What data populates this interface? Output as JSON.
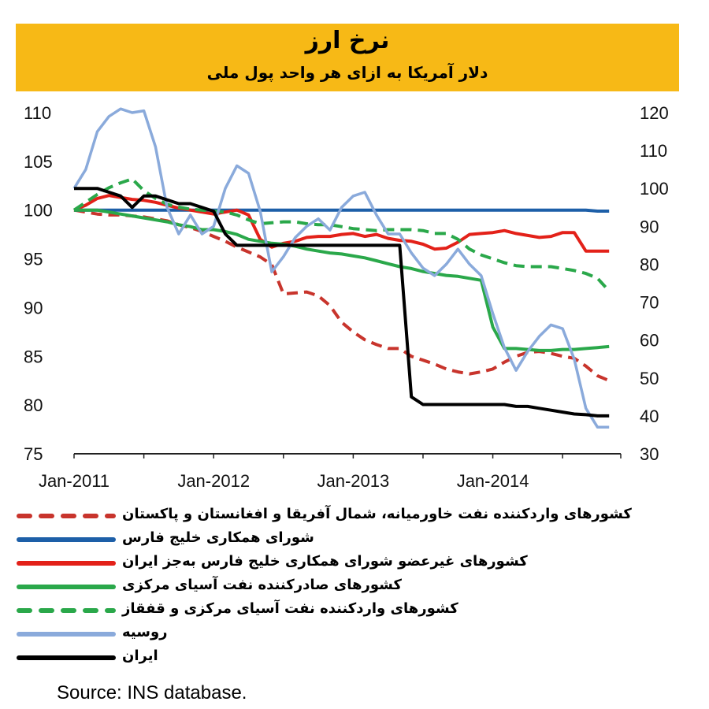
{
  "chart_data": {
    "type": "line",
    "title": "نرخ ارز",
    "subtitle": "دلار آمریکا به ازای هر واحد پول ملی",
    "source": "Source: INS database.",
    "x_ticks": [
      "Jan-2011",
      "Jan-2012",
      "Jan-2013",
      "Jan-2014"
    ],
    "x_range": [
      0,
      47
    ],
    "y_left": {
      "ticks": [
        "110",
        "105",
        "100",
        "95",
        "90",
        "85",
        "80",
        "75"
      ],
      "range": [
        75,
        110
      ]
    },
    "y_right": {
      "ticks": [
        "120",
        "110",
        "100",
        "90",
        "80",
        "70",
        "60",
        "50",
        "40",
        "30"
      ],
      "range": [
        30,
        120
      ]
    },
    "grid": false,
    "legend_position": "bottom",
    "series": [
      {
        "name": "کشورهای واردکننده نفت خاورمیانه، شمال آفریقا و افغانستان و پاکستان",
        "color": "#c8342c",
        "dash": true,
        "axis": "left",
        "values": [
          100,
          99.8,
          99.6,
          99.5,
          99.5,
          99.4,
          99.3,
          99.1,
          98.9,
          98.5,
          98.2,
          97.8,
          97.3,
          96.8,
          96.2,
          95.7,
          95.2,
          94.4,
          91.4,
          91.5,
          91.6,
          91.2,
          90.2,
          88.5,
          87.5,
          86.7,
          86.2,
          85.8,
          85.8,
          85.0,
          84.6,
          84.2,
          83.7,
          83.4,
          83.2,
          83.4,
          83.7,
          84.4,
          85.0,
          85.4,
          85.5,
          85.3,
          85.0,
          84.8,
          84.0,
          83.0,
          82.5
        ]
      },
      {
        "name": "شورای همکاری خلیج فارس",
        "color": "#1d5fa8",
        "dash": false,
        "axis": "left",
        "values": [
          100,
          100,
          100,
          100,
          100,
          100,
          100,
          100,
          100,
          100,
          100,
          100,
          100,
          100,
          100,
          100,
          100,
          100,
          100,
          100,
          100,
          100,
          100,
          100,
          100,
          100,
          100,
          100,
          100,
          100,
          100,
          100,
          100,
          100,
          100,
          100,
          100,
          100,
          100,
          100,
          100,
          100,
          100,
          100,
          100,
          99.9,
          99.9
        ]
      },
      {
        "name": "کشورهای غیرعضو شورای همکاری خلیج فارس به‌جز ایران",
        "color": "#e32119",
        "dash": false,
        "axis": "left",
        "values": [
          100,
          100.5,
          101.2,
          101.5,
          101.3,
          101.1,
          101.0,
          100.8,
          100.5,
          100.2,
          100.0,
          99.8,
          99.6,
          99.8,
          100.0,
          99.5,
          97.0,
          96.2,
          96.6,
          96.8,
          97.2,
          97.3,
          97.3,
          97.5,
          97.6,
          97.3,
          97.5,
          97.1,
          96.9,
          96.8,
          96.5,
          96.0,
          96.1,
          96.7,
          97.5,
          97.6,
          97.7,
          97.9,
          97.6,
          97.4,
          97.2,
          97.3,
          97.7,
          97.7,
          95.8,
          95.8,
          95.8
        ]
      },
      {
        "name": "کشورهای صادرکننده نفت آسیای مرکزی",
        "color": "#2aa84a",
        "dash": false,
        "axis": "left",
        "values": [
          100,
          100,
          100,
          99.8,
          99.6,
          99.4,
          99.2,
          99.0,
          98.8,
          98.5,
          98.3,
          98.0,
          98.0,
          97.8,
          97.5,
          97.0,
          96.8,
          96.6,
          96.5,
          96.3,
          96.0,
          95.8,
          95.6,
          95.5,
          95.3,
          95.1,
          94.8,
          94.5,
          94.2,
          94.0,
          93.7,
          93.5,
          93.3,
          93.2,
          93.0,
          92.8,
          88.0,
          85.8,
          85.8,
          85.7,
          85.6,
          85.6,
          85.7,
          85.7,
          85.8,
          85.9,
          86.0
        ]
      },
      {
        "name": "کشورهای واردکننده نفت آسیای مرکزی و قفقاز",
        "color": "#2aa84a",
        "dash": true,
        "axis": "left",
        "values": [
          100,
          100.8,
          101.6,
          102.3,
          102.8,
          103.2,
          102.0,
          101.2,
          100.6,
          100.3,
          100.1,
          100.0,
          99.9,
          99.8,
          99.5,
          99.0,
          98.6,
          98.7,
          98.8,
          98.8,
          98.6,
          98.5,
          98.5,
          98.3,
          98.1,
          98.0,
          97.9,
          98.0,
          98.0,
          98.0,
          97.9,
          97.6,
          97.6,
          97.0,
          96.0,
          95.4,
          95.0,
          94.6,
          94.3,
          94.2,
          94.2,
          94.2,
          94.0,
          93.8,
          93.5,
          93.0,
          91.7
        ]
      },
      {
        "name": "روسیه",
        "color": "#8aaadb",
        "dash": false,
        "axis": "right",
        "values": [
          100,
          105.0,
          115.0,
          119.0,
          121.0,
          120.0,
          120.5,
          111.0,
          95.0,
          88.0,
          93.0,
          88.0,
          90.0,
          100.0,
          106.0,
          104.0,
          94.0,
          78.0,
          82.0,
          87.0,
          90.0,
          92.0,
          89.0,
          95.0,
          98.0,
          99.0,
          93.0,
          88.0,
          88.0,
          83.0,
          79.0,
          77.0,
          80.0,
          84.0,
          80.0,
          77.0,
          67.0,
          58.0,
          52.0,
          57.0,
          61.0,
          64.0,
          63.0,
          55.0,
          42.0,
          37.0,
          37.0
        ]
      },
      {
        "name": "ایران",
        "color": "#000000",
        "dash": false,
        "axis": "right",
        "values": [
          100,
          100,
          100,
          99.0,
          98.0,
          95.0,
          98.0,
          98.0,
          97.0,
          96.0,
          96.0,
          95.0,
          94.0,
          88.0,
          85.0,
          85.0,
          85.0,
          85.0,
          85.0,
          85.0,
          85.0,
          85.0,
          85.0,
          85.0,
          85.0,
          85.0,
          85.0,
          85.0,
          85.0,
          45.0,
          43.0,
          43.0,
          43.0,
          43.0,
          43.0,
          43.0,
          43.0,
          43.0,
          42.5,
          42.5,
          42.0,
          41.5,
          41.0,
          40.5,
          40.3,
          40.0,
          40.0
        ]
      }
    ]
  }
}
